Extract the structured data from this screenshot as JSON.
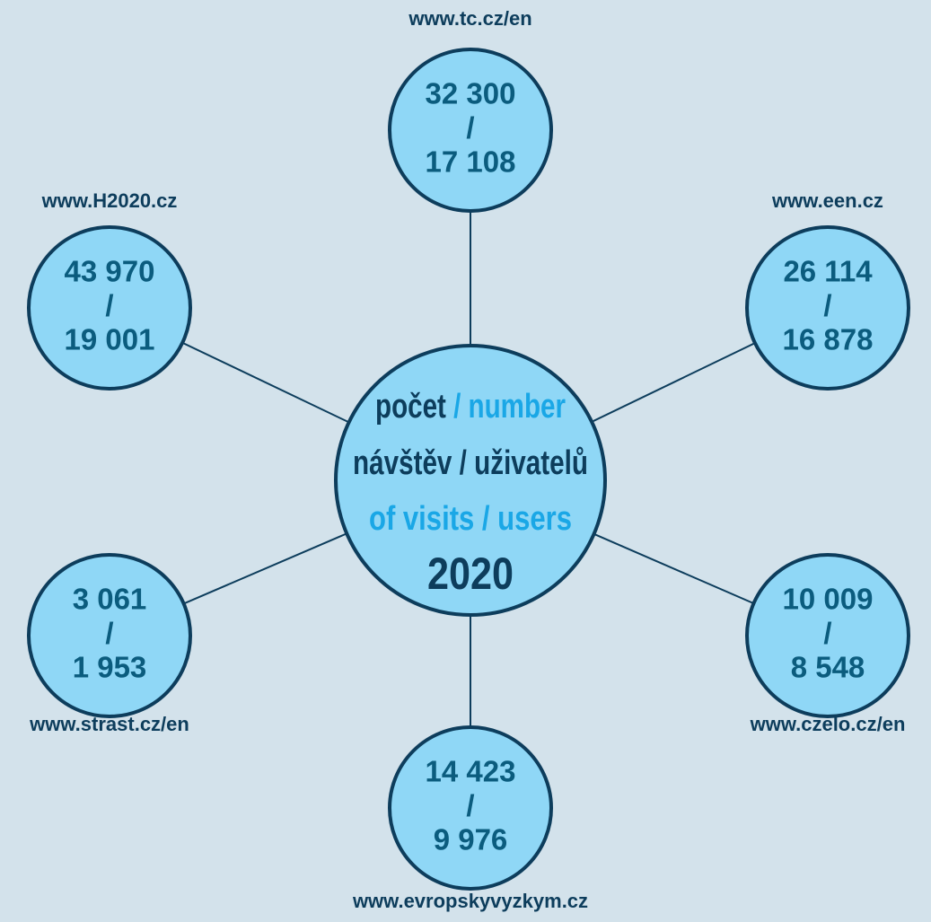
{
  "center": {
    "line1a": "počet",
    "line1b": " / number",
    "line2": "návštěv / uživatelů",
    "line3": "of visits / users",
    "year": "2020"
  },
  "separator": "/",
  "nodes": [
    {
      "label": "www.tc.cz/en",
      "visits": "32 300",
      "users": "17 108"
    },
    {
      "label": "www.een.cz",
      "visits": "26 114",
      "users": "16 878"
    },
    {
      "label": "www.czelo.cz/en",
      "visits": "10 009",
      "users": "8 548"
    },
    {
      "label": "www.evropskyvyzkym.cz",
      "visits": "14 423",
      "users": "9 976"
    },
    {
      "label": "www.strast.cz/en",
      "visits": "3 061",
      "users": "1 953"
    },
    {
      "label": "www.H2020.cz",
      "visits": "43 970",
      "users": "19 001"
    }
  ]
}
